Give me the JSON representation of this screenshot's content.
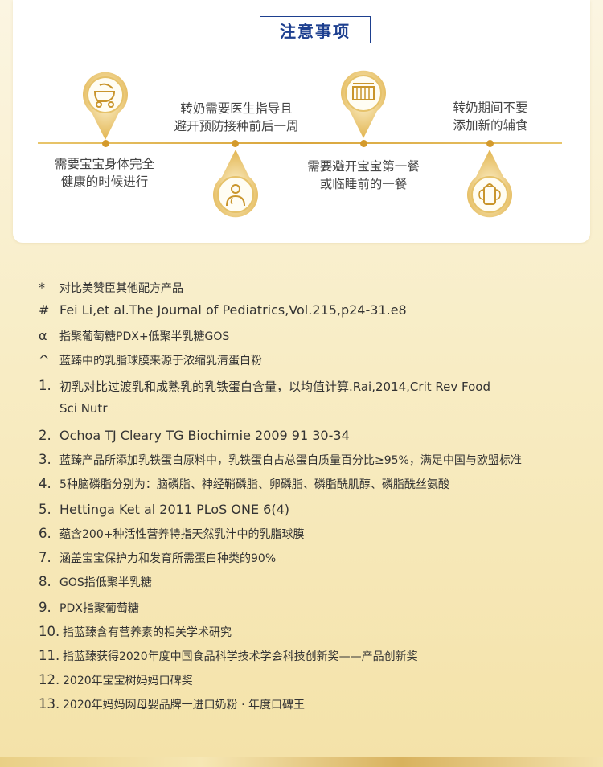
{
  "title": "注意事项",
  "tips": [
    {
      "line1": "需要宝宝身体完全",
      "line2": "健康的时候进行",
      "icon": "stroller-icon"
    },
    {
      "line1": "转奶需要医生指导且",
      "line2": "避开预防接种前后一周",
      "icon": "doctor-icon"
    },
    {
      "line1": "需要避开宝宝第一餐",
      "line2": "或临睡前的一餐",
      "icon": "crib-icon"
    },
    {
      "line1": "转奶期间不要",
      "line2": "添加新的辅食",
      "icon": "baby-bottle-icon"
    }
  ],
  "colors": {
    "accent": "#1d3f8f",
    "gold": "#d49a2c"
  },
  "footnotes": [
    {
      "mark": "*",
      "text": "对比美赞臣其他配方产品"
    },
    {
      "mark": "#",
      "text": "Fei Li,et al.The Journal of Pediatrics,Vol.215,p24-31.e8"
    },
    {
      "mark": "α",
      "text": "指聚葡萄糖PDX+低聚半乳糖GOS"
    },
    {
      "mark": "^",
      "text": "蓝臻中的乳脂球膜来源于浓缩乳清蛋白粉"
    },
    {
      "mark": "1.",
      "text": "初乳对比过渡乳和成熟乳的乳铁蛋白含量，以均值计算.Rai,2014,Crit Rev Food",
      "text2": "Sci Nutr"
    },
    {
      "mark": "2.",
      "text": "Ochoa TJ Cleary TG Biochimie 2009 91 30-34"
    },
    {
      "mark": "3.",
      "text": "蓝臻产品所添加乳铁蛋白原料中，乳铁蛋白占总蛋白质量百分比≥95%，满足中国与欧盟标准"
    },
    {
      "mark": "4.",
      "text": "5种脑磷脂分别为：脑磷脂、神经鞘磷脂、卵磷脂、磷脂酰肌醇、磷脂酰丝氨酸"
    },
    {
      "mark": "5.",
      "text": "Hettinga Ket al 2011 PLoS ONE 6(4)"
    },
    {
      "mark": "6.",
      "text": "蕴含200+种活性营养特指天然乳汁中的乳脂球膜"
    },
    {
      "mark": "7.",
      "text": "涵盖宝宝保护力和发育所需蛋白种类的90%"
    },
    {
      "mark": "8.",
      "text": "GOS指低聚半乳糖"
    },
    {
      "mark": "9.",
      "text": "PDX指聚葡萄糖"
    },
    {
      "mark": "10.",
      "text": "指蓝臻含有营养素的相关学术研究"
    },
    {
      "mark": "11.",
      "text": "指蓝臻获得2020年度中国食品科学技术学会科技创新奖——产品创新奖"
    },
    {
      "mark": "12.",
      "text": "2020年宝宝树妈妈口碑奖"
    },
    {
      "mark": "13.",
      "text": "2020年妈妈网母婴品牌一进口奶粉 · 年度口碑王"
    }
  ]
}
